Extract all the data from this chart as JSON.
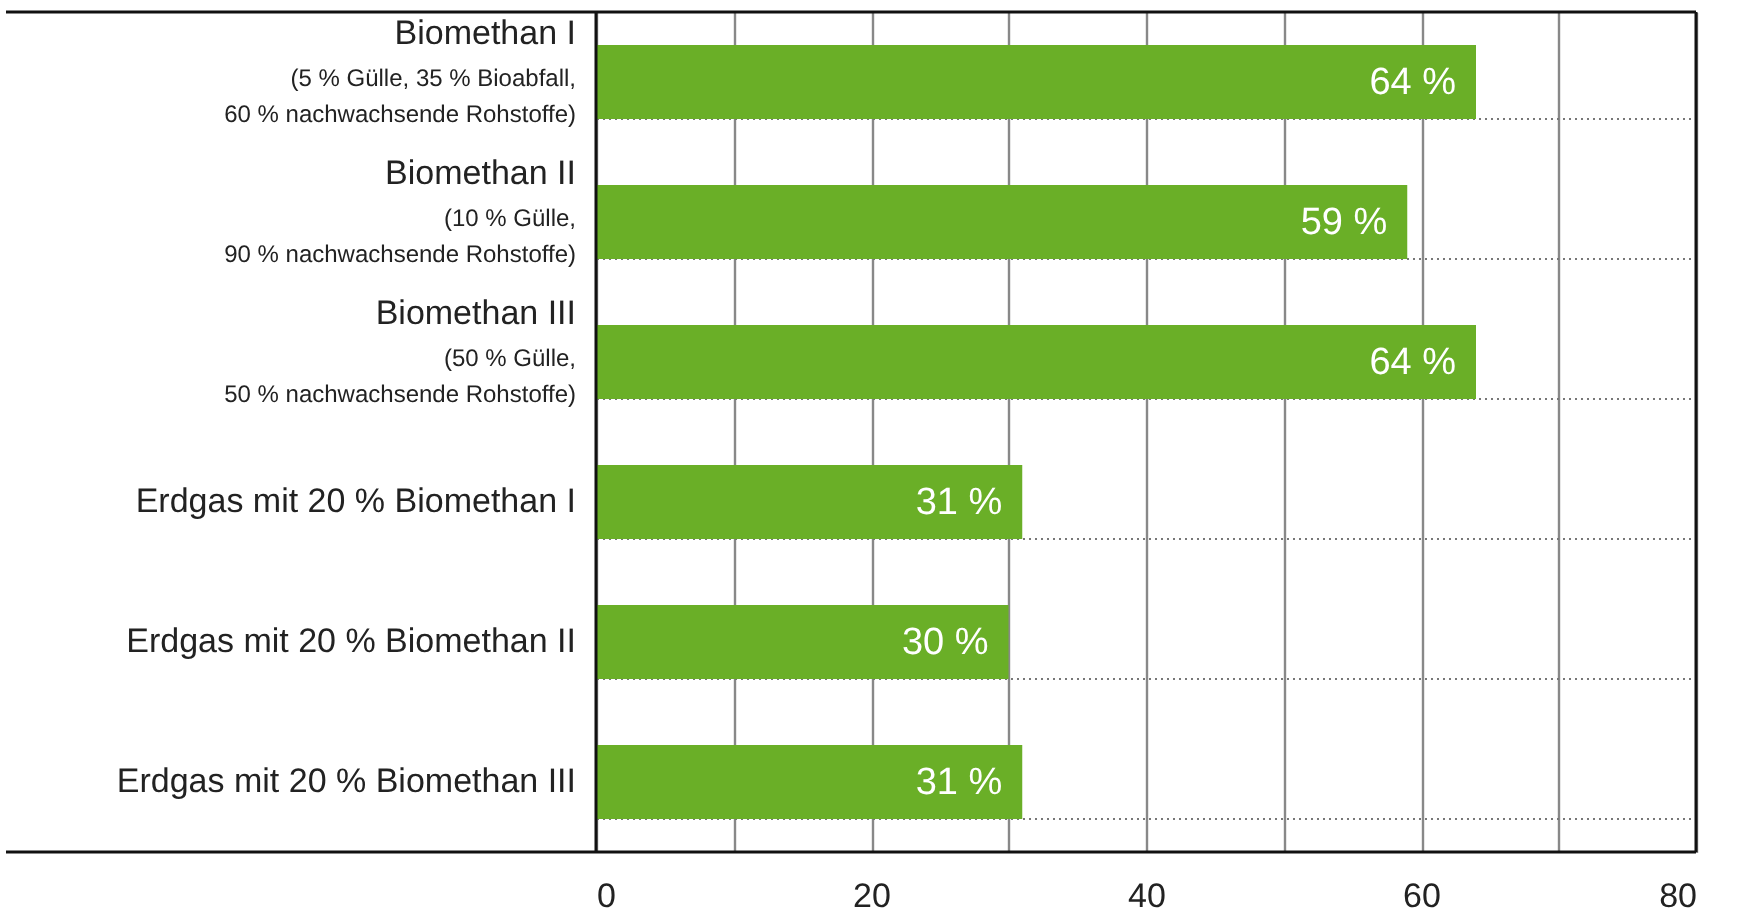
{
  "chart_data": {
    "type": "bar",
    "orientation": "horizontal",
    "categories": [
      "Biomethan I\n(5 % Gülle, 35 % Bioabfall,\n60 % nachwachsende Rohstoffe)",
      "Biomethan II\n(10 % Gülle,\n90 % nachwachsende Rohstoffe)",
      "Biomethan III\n(50 % Gülle,\n50 % nachwachsende Rohstoffe)",
      "Erdgas mit 20 % Biomethan I",
      "Erdgas mit 20 % Biomethan II",
      "Erdgas mit 20 % Biomethan III"
    ],
    "values": [
      64,
      59,
      64,
      31,
      30,
      31
    ],
    "value_labels": [
      "64 %",
      "59 %",
      "64 %",
      "31 %",
      "30 %",
      "31 %"
    ],
    "color": "#6aaf27",
    "xlim": [
      0,
      80
    ],
    "xticks": [
      0,
      {
        "value": 10,
        "label": null
      },
      20,
      {
        "value": 30,
        "label": null
      },
      40,
      {
        "value": 50,
        "label": null
      },
      60,
      {
        "value": 70,
        "label": null
      },
      80
    ],
    "grid": true
  }
}
